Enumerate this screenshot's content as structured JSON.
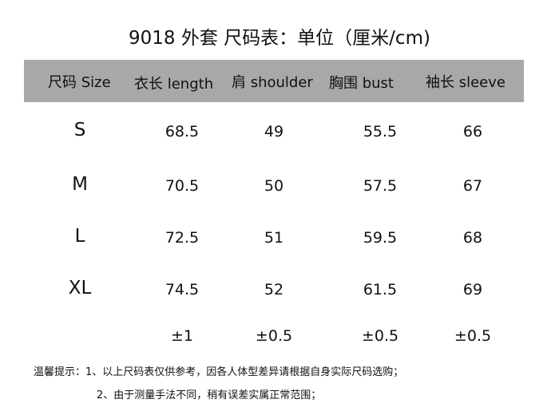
{
  "title": "9018 外套  尺码表：单位（厘米/cm)",
  "header_band_color": "#a8a8a8",
  "columns": [
    "尺码 Size",
    "衣长 length",
    "肩 shoulder",
    "胸围 bust",
    "袖长 sleeve"
  ],
  "rows": [
    [
      "S",
      "68.5",
      "49",
      "55.5",
      "66"
    ],
    [
      "M",
      "70.5",
      "50",
      "57.5",
      "67"
    ],
    [
      "L",
      "72.5",
      "51",
      "59.5",
      "68"
    ],
    [
      "XL",
      "74.5",
      "52",
      "61.5",
      "69"
    ]
  ],
  "tolerance": [
    "",
    "±1",
    "±0.5",
    "±0.5",
    "±0.5"
  ],
  "notes": [
    "温馨提示：1、以上尺码表仅供参考，因各人体型差异请根据自身实际尺码选购；",
    "2、由于测量手法不同，稍有误差实属正常范围；"
  ]
}
